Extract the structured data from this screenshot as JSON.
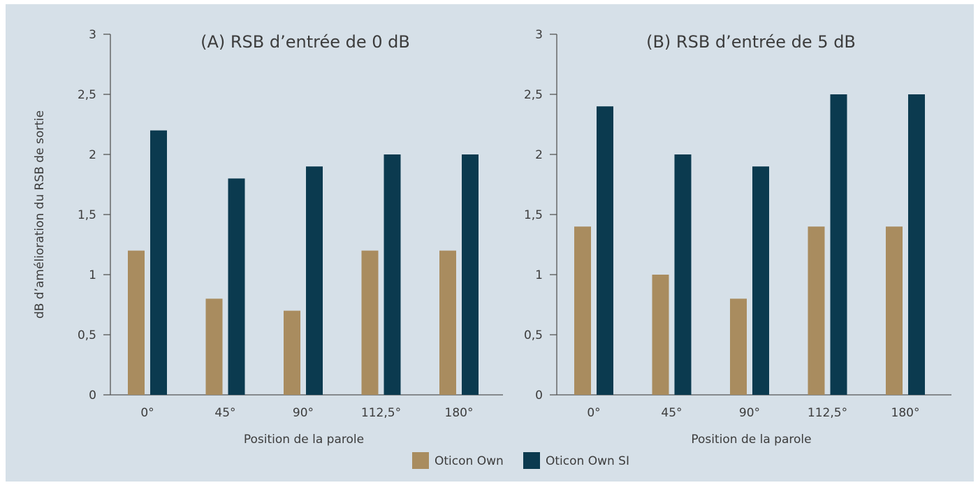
{
  "chart_data": [
    {
      "type": "bar",
      "title": "(A) RSB d’entrée de 0 dB",
      "xlabel": "Position de la parole",
      "ylabel": "dB d’amélioration du RSB de sortie",
      "categories": [
        "0°",
        "45°",
        "90°",
        "112,5°",
        "180°"
      ],
      "ylim": [
        0,
        3
      ],
      "yticks": [
        0,
        0.5,
        1,
        1.5,
        2,
        2.5,
        3
      ],
      "ytick_labels": [
        "0",
        "0,5",
        "1",
        "1,5",
        "2",
        "2,5",
        "3"
      ],
      "series": [
        {
          "name": "Oticon Own",
          "color": "#a98c5f",
          "values": [
            1.2,
            0.8,
            0.7,
            1.2,
            1.2
          ]
        },
        {
          "name": "Oticon Own SI",
          "color": "#0b3a4f",
          "values": [
            2.2,
            1.8,
            1.9,
            2.0,
            2.0
          ]
        }
      ]
    },
    {
      "type": "bar",
      "title": "(B) RSB d’entrée de 5 dB",
      "xlabel": "Position de la parole",
      "ylabel": "",
      "categories": [
        "0°",
        "45°",
        "90°",
        "112,5°",
        "180°"
      ],
      "ylim": [
        0,
        3
      ],
      "yticks": [
        0,
        0.5,
        1,
        1.5,
        2,
        2.5,
        3
      ],
      "ytick_labels": [
        "0",
        "0,5",
        "1",
        "1,5",
        "2",
        "2,5",
        "3"
      ],
      "series": [
        {
          "name": "Oticon Own",
          "color": "#a98c5f",
          "values": [
            1.4,
            1.0,
            0.8,
            1.4,
            1.4
          ]
        },
        {
          "name": "Oticon Own SI",
          "color": "#0b3a4f",
          "values": [
            2.4,
            2.0,
            1.9,
            2.5,
            2.5
          ]
        }
      ]
    }
  ],
  "legend": {
    "items": [
      {
        "label": "Oticon Own",
        "color": "#a98c5f"
      },
      {
        "label": "Oticon Own SI",
        "color": "#0b3a4f"
      }
    ]
  }
}
